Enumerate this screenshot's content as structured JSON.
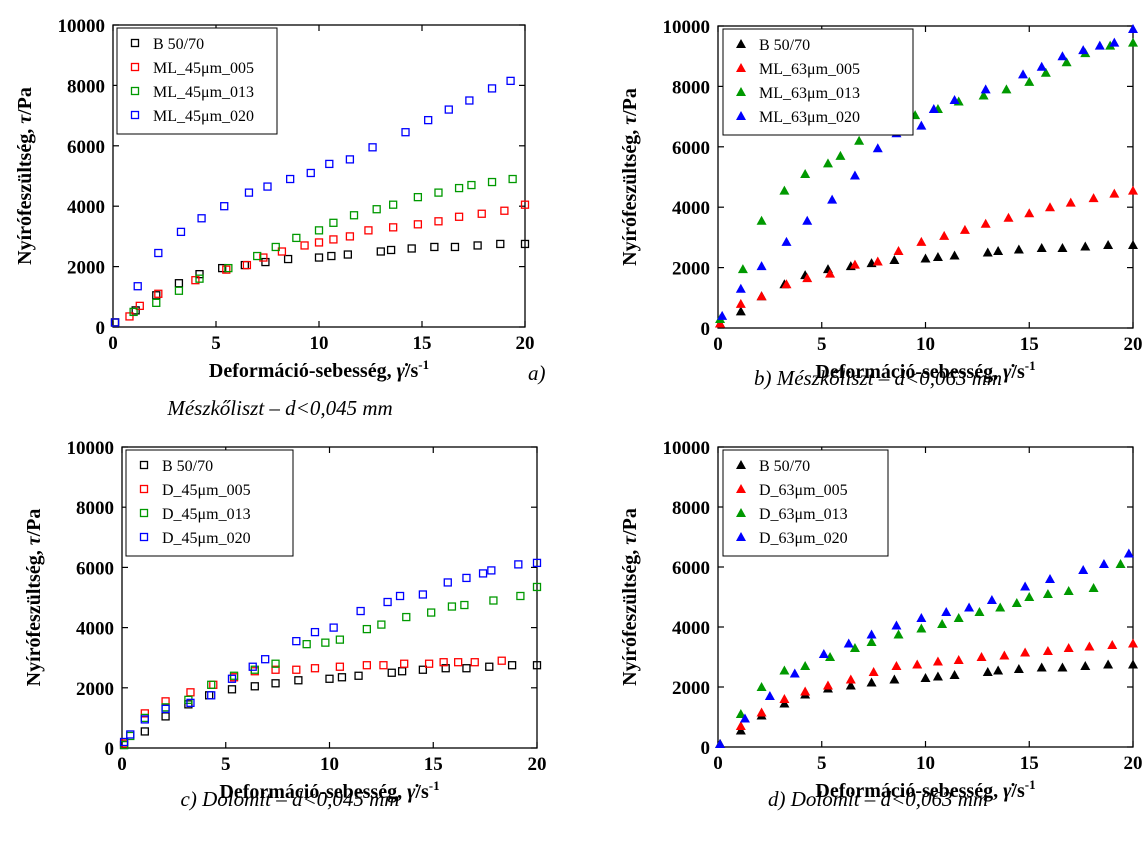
{
  "chart_data": [
    {
      "type": "scatter",
      "marker": "open-square",
      "xlabel": "Deformáció-sebesség, γ̇/s⁻¹",
      "xlabel_main": "Deformáció-sebesség, ",
      "xlabel_symbol": "γ̇",
      "xlabel_unit": "/s",
      "xlabel_exp": "-1",
      "ylabel": "Nyírófeszültség, τ/Pa",
      "ylabel_main": "Nyírófeszültség, ",
      "ylabel_symbol": "τ",
      "ylabel_unit": "/Pa",
      "xlim": [
        0,
        20
      ],
      "ylim": [
        0,
        10000
      ],
      "xticks": [
        "0",
        "5",
        "10",
        "15",
        "20"
      ],
      "yticks": [
        "0",
        "2000",
        "4000",
        "6000",
        "8000",
        "10000"
      ],
      "legend_position": "top-left",
      "letter": "a)",
      "caption": "Mészkőliszt – d<0,045 mm",
      "series": [
        {
          "name": "B 50/70",
          "color": "#000000",
          "x": [
            0.1,
            1.1,
            2.1,
            3.2,
            4.2,
            5.3,
            6.4,
            7.4,
            8.5,
            10.0,
            10.6,
            11.4,
            13.0,
            13.5,
            14.5,
            15.6,
            16.6,
            17.7,
            18.8,
            20.0
          ],
          "y": [
            150,
            550,
            1050,
            1450,
            1750,
            1950,
            2050,
            2150,
            2250,
            2300,
            2350,
            2400,
            2500,
            2550,
            2600,
            2650,
            2650,
            2700,
            2750,
            2750
          ]
        },
        {
          "name": "ML_45μm_005",
          "color": "#ff0000",
          "x": [
            0.1,
            0.8,
            1.3,
            2.2,
            4.0,
            5.5,
            6.5,
            7.3,
            8.2,
            9.3,
            10.0,
            10.7,
            11.5,
            12.4,
            13.6,
            14.8,
            15.8,
            16.8,
            17.9,
            19.0,
            20.0
          ],
          "y": [
            150,
            350,
            700,
            1100,
            1550,
            1900,
            2050,
            2300,
            2500,
            2700,
            2800,
            2900,
            3000,
            3200,
            3300,
            3400,
            3500,
            3650,
            3750,
            3850,
            4050
          ]
        },
        {
          "name": "ML_45μm_013",
          "color": "#009900",
          "x": [
            0.1,
            1.0,
            2.1,
            3.2,
            4.2,
            5.6,
            7.0,
            7.9,
            8.9,
            10.0,
            10.7,
            11.7,
            12.8,
            13.6,
            14.8,
            15.8,
            16.8,
            17.4,
            18.4,
            19.4
          ],
          "y": [
            150,
            500,
            800,
            1200,
            1600,
            1950,
            2350,
            2650,
            2950,
            3200,
            3450,
            3700,
            3900,
            4050,
            4300,
            4450,
            4600,
            4700,
            4800,
            4900
          ]
        },
        {
          "name": "ML_45μm_020",
          "color": "#0000ff",
          "x": [
            0.1,
            1.2,
            2.2,
            3.3,
            4.3,
            5.4,
            6.6,
            7.5,
            8.6,
            9.6,
            10.5,
            11.5,
            12.6,
            14.2,
            15.3,
            16.3,
            17.3,
            18.4,
            19.3
          ],
          "y": [
            150,
            1350,
            2450,
            3150,
            3600,
            4000,
            4450,
            4650,
            4900,
            5100,
            5400,
            5550,
            5950,
            6450,
            6850,
            7200,
            7500,
            7900,
            8150
          ]
        }
      ]
    },
    {
      "type": "scatter",
      "marker": "filled-triangle",
      "xlabel": "Deformáció-sebesség, γ̇/s⁻¹",
      "xlabel_main": "Deformáció-sebesség, ",
      "xlabel_symbol": "γ̇",
      "xlabel_unit": "/s",
      "xlabel_exp": "-1",
      "ylabel": "Nyírófeszültség, τ/Pa",
      "ylabel_main": "Nyírófeszültség, ",
      "ylabel_symbol": "τ",
      "ylabel_unit": "/Pa",
      "xlim": [
        0,
        20
      ],
      "ylim": [
        0,
        10000
      ],
      "xticks": [
        "0",
        "5",
        "10",
        "15",
        "20"
      ],
      "yticks": [
        "0",
        "2000",
        "4000",
        "6000",
        "8000",
        "10000"
      ],
      "legend_position": "top-left",
      "letter": "",
      "caption": "b) Mészkőliszt – d<0,063 mm",
      "series": [
        {
          "name": "B 50/70",
          "color": "#000000",
          "x": [
            0.1,
            1.1,
            2.1,
            3.2,
            4.2,
            5.3,
            6.4,
            7.4,
            8.5,
            10.0,
            10.6,
            11.4,
            13.0,
            13.5,
            14.5,
            15.6,
            16.6,
            17.7,
            18.8,
            20.0
          ],
          "y": [
            150,
            550,
            1050,
            1450,
            1750,
            1950,
            2050,
            2150,
            2250,
            2300,
            2350,
            2400,
            2500,
            2550,
            2600,
            2650,
            2650,
            2700,
            2750,
            2750
          ]
        },
        {
          "name": "ML_63μm_005",
          "color": "#ff0000",
          "x": [
            0.1,
            1.1,
            2.1,
            3.3,
            4.3,
            5.4,
            6.6,
            7.7,
            8.7,
            9.8,
            10.9,
            11.9,
            12.9,
            14.0,
            15.0,
            16.0,
            17.0,
            18.1,
            19.1,
            20.0
          ],
          "y": [
            150,
            800,
            1050,
            1450,
            1650,
            1800,
            2100,
            2200,
            2550,
            2850,
            3050,
            3250,
            3450,
            3650,
            3800,
            4000,
            4150,
            4300,
            4450,
            4550
          ]
        },
        {
          "name": "ML_63μm_013",
          "color": "#009900",
          "x": [
            0.1,
            1.2,
            2.1,
            3.2,
            4.2,
            5.3,
            5.9,
            6.8,
            8.6,
            9.5,
            10.6,
            11.6,
            12.8,
            13.9,
            15.0,
            15.8,
            16.8,
            17.7,
            18.9,
            20.0
          ],
          "y": [
            300,
            1950,
            3550,
            4550,
            5100,
            5450,
            5700,
            6200,
            6650,
            7050,
            7250,
            7500,
            7700,
            7900,
            8150,
            8450,
            8800,
            9100,
            9350,
            9450
          ]
        },
        {
          "name": "ML_63μm_020",
          "color": "#0000ff",
          "x": [
            0.2,
            1.1,
            2.1,
            3.3,
            4.3,
            5.5,
            6.6,
            7.7,
            8.6,
            9.8,
            10.4,
            11.4,
            12.9,
            14.7,
            15.6,
            16.6,
            17.6,
            18.4,
            19.1,
            20.0
          ],
          "y": [
            400,
            1300,
            2050,
            2850,
            3550,
            4250,
            5050,
            5950,
            6450,
            6700,
            7250,
            7550,
            7900,
            8400,
            8650,
            9000,
            9200,
            9350,
            9450,
            9900
          ]
        }
      ]
    },
    {
      "type": "scatter",
      "marker": "open-square",
      "xlabel": "Deformáció-sebesség, γ̇/s⁻¹",
      "xlabel_main": "Deformáció-sebesség, ",
      "xlabel_symbol": "γ̇",
      "xlabel_unit": "/s",
      "xlabel_exp": "-1",
      "ylabel": "Nyírófeszültség, τ/Pa",
      "ylabel_main": "Nyírófeszültség, ",
      "ylabel_symbol": "τ",
      "ylabel_unit": "/Pa",
      "xlim": [
        0,
        20
      ],
      "ylim": [
        0,
        10000
      ],
      "xticks": [
        "0",
        "5",
        "10",
        "15",
        "20"
      ],
      "yticks": [
        "0",
        "2000",
        "4000",
        "6000",
        "8000",
        "10000"
      ],
      "legend_position": "top-left",
      "letter": "",
      "caption": "c) Dolomit – d<0,045 mm",
      "series": [
        {
          "name": "B 50/70",
          "color": "#000000",
          "x": [
            0.1,
            1.1,
            2.1,
            3.2,
            4.2,
            5.3,
            6.4,
            7.4,
            8.5,
            10.0,
            10.6,
            11.4,
            13.0,
            13.5,
            14.5,
            15.6,
            16.6,
            17.7,
            18.8,
            20.0
          ],
          "y": [
            100,
            550,
            1050,
            1450,
            1750,
            1950,
            2050,
            2150,
            2250,
            2300,
            2350,
            2400,
            2500,
            2550,
            2600,
            2650,
            2650,
            2700,
            2750,
            2750
          ]
        },
        {
          "name": "D_45μm_005",
          "color": "#ff0000",
          "x": [
            0.1,
            1.1,
            2.1,
            3.3,
            4.4,
            5.4,
            6.4,
            7.4,
            8.4,
            9.3,
            10.5,
            11.8,
            12.6,
            13.6,
            14.8,
            15.5,
            16.2,
            17.0,
            18.3
          ],
          "y": [
            150,
            1150,
            1550,
            1850,
            2100,
            2350,
            2550,
            2600,
            2600,
            2650,
            2700,
            2750,
            2750,
            2800,
            2800,
            2850,
            2850,
            2850,
            2900
          ]
        },
        {
          "name": "D_45μm_013",
          "color": "#009900",
          "x": [
            0.1,
            0.4,
            1.1,
            2.1,
            3.2,
            4.3,
            5.4,
            6.4,
            7.4,
            8.9,
            9.8,
            10.5,
            11.8,
            12.5,
            13.7,
            14.9,
            15.9,
            16.5,
            17.9,
            19.2,
            20.0
          ],
          "y": [
            100,
            400,
            1000,
            1350,
            1600,
            2100,
            2400,
            2600,
            2800,
            3450,
            3500,
            3600,
            3950,
            4100,
            4350,
            4500,
            4700,
            4750,
            4900,
            5050,
            5350
          ]
        },
        {
          "name": "D_45μm_020",
          "color": "#0000ff",
          "x": [
            0.1,
            0.4,
            1.1,
            2.1,
            3.3,
            4.3,
            5.3,
            6.3,
            6.9,
            8.4,
            9.3,
            10.2,
            11.5,
            12.8,
            13.4,
            14.5,
            15.7,
            16.6,
            17.4,
            17.8,
            19.1,
            20.0
          ],
          "y": [
            200,
            450,
            950,
            1300,
            1500,
            1750,
            2300,
            2700,
            2950,
            3550,
            3850,
            4000,
            4550,
            4850,
            5050,
            5100,
            5500,
            5650,
            5800,
            5900,
            6100,
            6150
          ]
        }
      ]
    },
    {
      "type": "scatter",
      "marker": "filled-triangle",
      "xlabel": "Deformáció-sebesség, γ̇/s⁻¹",
      "xlabel_main": "Deformáció-sebesség, ",
      "xlabel_symbol": "γ̇",
      "xlabel_unit": "/s",
      "xlabel_exp": "-1",
      "ylabel": "Nyírófeszültség, τ/Pa",
      "ylabel_main": "Nyírófeszültség, ",
      "ylabel_symbol": "τ",
      "ylabel_unit": "/Pa",
      "xlim": [
        0,
        20
      ],
      "ylim": [
        0,
        10000
      ],
      "xticks": [
        "0",
        "5",
        "10",
        "15",
        "20"
      ],
      "yticks": [
        "0",
        "2000",
        "4000",
        "6000",
        "8000",
        "10000"
      ],
      "legend_position": "top-left",
      "letter": "",
      "caption": "d) Dolomit – d<0,063 mm",
      "series": [
        {
          "name": "B 50/70",
          "color": "#000000",
          "x": [
            0.1,
            1.1,
            2.1,
            3.2,
            4.2,
            5.3,
            6.4,
            7.4,
            8.5,
            10.0,
            10.6,
            11.4,
            13.0,
            13.5,
            14.5,
            15.6,
            16.6,
            17.7,
            18.8,
            20.0
          ],
          "y": [
            100,
            550,
            1050,
            1450,
            1750,
            1950,
            2050,
            2150,
            2250,
            2300,
            2350,
            2400,
            2500,
            2550,
            2600,
            2650,
            2650,
            2700,
            2750,
            2750
          ]
        },
        {
          "name": "D_63μm_005",
          "color": "#ff0000",
          "x": [
            0.1,
            1.1,
            2.1,
            3.2,
            4.2,
            5.3,
            6.4,
            7.5,
            8.6,
            9.6,
            10.6,
            11.6,
            12.7,
            13.8,
            14.8,
            15.9,
            16.9,
            17.9,
            19.0,
            20.0
          ],
          "y": [
            100,
            700,
            1150,
            1600,
            1850,
            2050,
            2250,
            2500,
            2700,
            2750,
            2850,
            2900,
            3000,
            3050,
            3150,
            3200,
            3300,
            3350,
            3400,
            3450
          ]
        },
        {
          "name": "D_63μm_013",
          "color": "#009900",
          "x": [
            0.1,
            1.1,
            2.1,
            3.2,
            4.2,
            5.4,
            6.6,
            7.4,
            8.7,
            9.8,
            10.8,
            11.6,
            12.6,
            13.6,
            14.4,
            15.0,
            15.9,
            16.9,
            18.1,
            19.4
          ],
          "y": [
            100,
            1100,
            2000,
            2550,
            2700,
            3000,
            3300,
            3500,
            3750,
            3950,
            4100,
            4300,
            4500,
            4650,
            4800,
            5000,
            5100,
            5200,
            5300,
            6100
          ]
        },
        {
          "name": "D_63μm_020",
          "color": "#0000ff",
          "x": [
            0.1,
            1.3,
            2.5,
            3.7,
            5.1,
            6.3,
            7.4,
            8.6,
            9.8,
            11.0,
            12.1,
            13.2,
            14.8,
            16.0,
            17.6,
            18.6,
            19.8
          ],
          "y": [
            100,
            950,
            1700,
            2450,
            3100,
            3450,
            3750,
            4050,
            4300,
            4500,
            4650,
            4900,
            5350,
            5600,
            5900,
            6100,
            6450
          ]
        }
      ]
    }
  ]
}
